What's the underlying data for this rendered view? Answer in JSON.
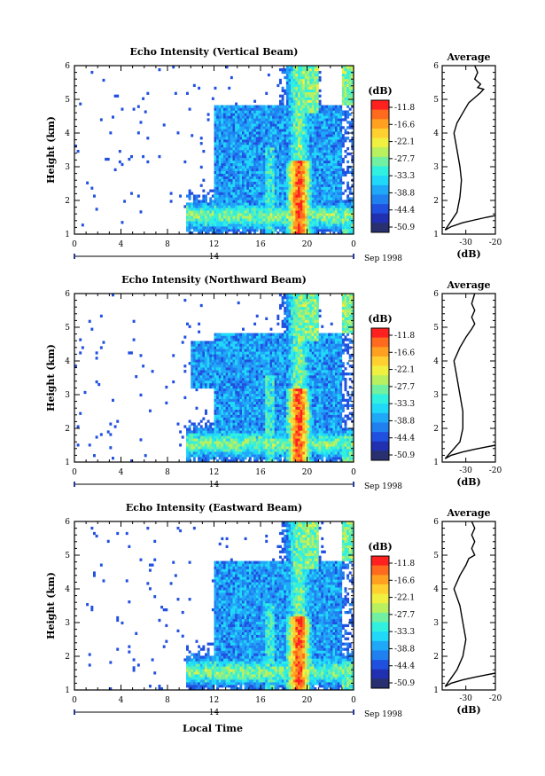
{
  "footer": {
    "xlabel": "Local Time"
  },
  "colorbar": {
    "unit_label": "(dB)",
    "tick_labels": [
      "-11.8",
      "-16.6",
      "-22.1",
      "-27.7",
      "-33.3",
      "-38.8",
      "-44.4",
      "-50.9"
    ],
    "colors": [
      "#ff2020",
      "#ff6a1e",
      "#ffa020",
      "#ffd030",
      "#f0f040",
      "#b8f060",
      "#70f0a0",
      "#30f0e0",
      "#20d8f8",
      "#20a8f8",
      "#2080f0",
      "#2050e0",
      "#2030b0",
      "#283070"
    ]
  },
  "chart_data": [
    {
      "type": "heatmap",
      "title": "Echo Intensity (Vertical Beam)",
      "ylabel": "Height (km)",
      "xlabel": "",
      "x_ticks": [
        "0",
        "4",
        "8",
        "12",
        "16",
        "20",
        "0"
      ],
      "x_range": [
        0,
        24
      ],
      "y_ticks": [
        "1",
        "2",
        "3",
        "4",
        "5",
        "6"
      ],
      "y_range": [
        1,
        6
      ],
      "date_label": "14",
      "month_label": "Sep 1998",
      "average_profile": {
        "title": "Average",
        "xlabel": "(dB)",
        "x_ticks": [
          "-30",
          "-20"
        ],
        "x_range": [
          -38,
          -20
        ],
        "y_range": [
          1,
          6
        ],
        "points": [
          [
            -20,
            1.55
          ],
          [
            -23,
            1.5
          ],
          [
            -27,
            1.42
          ],
          [
            -31,
            1.34
          ],
          [
            -35,
            1.22
          ],
          [
            -37,
            1.12
          ],
          [
            -33,
            1.65
          ],
          [
            -32,
            2.1
          ],
          [
            -31.5,
            2.6
          ],
          [
            -32,
            3.0
          ],
          [
            -33,
            3.5
          ],
          [
            -34,
            4.0
          ],
          [
            -33,
            4.3
          ],
          [
            -31,
            4.6
          ],
          [
            -29,
            4.9
          ],
          [
            -27,
            5.05
          ],
          [
            -25,
            5.2
          ],
          [
            -24,
            5.3
          ],
          [
            -26,
            5.35
          ],
          [
            -25,
            5.45
          ],
          [
            -27,
            5.6
          ],
          [
            -26,
            5.8
          ],
          [
            -27,
            6.0
          ]
        ]
      }
    },
    {
      "type": "heatmap",
      "title": "Echo Intensity (Northward Beam)",
      "ylabel": "Height (km)",
      "xlabel": "",
      "x_ticks": [
        "0",
        "4",
        "8",
        "12",
        "16",
        "20",
        "0"
      ],
      "x_range": [
        0,
        24
      ],
      "y_ticks": [
        "1",
        "2",
        "3",
        "4",
        "5",
        "6"
      ],
      "y_range": [
        1,
        6
      ],
      "date_label": "14",
      "month_label": "Sep 1998",
      "average_profile": {
        "title": "Average",
        "xlabel": "(dB)",
        "x_ticks": [
          "-30",
          "-20"
        ],
        "x_range": [
          -38,
          -20
        ],
        "y_range": [
          1,
          6
        ],
        "points": [
          [
            -20,
            1.5
          ],
          [
            -23,
            1.45
          ],
          [
            -27,
            1.38
          ],
          [
            -31,
            1.3
          ],
          [
            -35,
            1.2
          ],
          [
            -37,
            1.1
          ],
          [
            -32,
            1.6
          ],
          [
            -31,
            2.0
          ],
          [
            -31,
            2.5
          ],
          [
            -32,
            3.0
          ],
          [
            -33,
            3.5
          ],
          [
            -34,
            4.0
          ],
          [
            -32,
            4.4
          ],
          [
            -30,
            4.7
          ],
          [
            -28,
            4.95
          ],
          [
            -27,
            5.1
          ],
          [
            -28,
            5.3
          ],
          [
            -27,
            5.5
          ],
          [
            -28,
            5.7
          ],
          [
            -27,
            6.0
          ]
        ]
      }
    },
    {
      "type": "heatmap",
      "title": "Echo Intensity (Eastward Beam)",
      "ylabel": "Height (km)",
      "xlabel": "",
      "x_ticks": [
        "0",
        "4",
        "8",
        "12",
        "16",
        "20",
        "0"
      ],
      "x_range": [
        0,
        24
      ],
      "y_ticks": [
        "1",
        "2",
        "3",
        "4",
        "5",
        "6"
      ],
      "y_range": [
        1,
        6
      ],
      "date_label": "14",
      "month_label": "Sep 1998",
      "average_profile": {
        "title": "Average",
        "xlabel": "(dB)",
        "x_ticks": [
          "-30",
          "-20"
        ],
        "x_range": [
          -38,
          -20
        ],
        "y_range": [
          1,
          6
        ],
        "points": [
          [
            -20,
            1.5
          ],
          [
            -23,
            1.45
          ],
          [
            -27,
            1.38
          ],
          [
            -31,
            1.3
          ],
          [
            -35,
            1.2
          ],
          [
            -37,
            1.1
          ],
          [
            -33,
            1.6
          ],
          [
            -31,
            2.0
          ],
          [
            -30,
            2.5
          ],
          [
            -31,
            3.0
          ],
          [
            -32,
            3.5
          ],
          [
            -34,
            4.0
          ],
          [
            -32,
            4.4
          ],
          [
            -30,
            4.7
          ],
          [
            -29,
            4.9
          ],
          [
            -27,
            5.0
          ],
          [
            -28,
            5.2
          ],
          [
            -27,
            5.4
          ],
          [
            -28,
            5.6
          ],
          [
            -27,
            5.8
          ],
          [
            -28,
            6.0
          ]
        ]
      }
    }
  ]
}
